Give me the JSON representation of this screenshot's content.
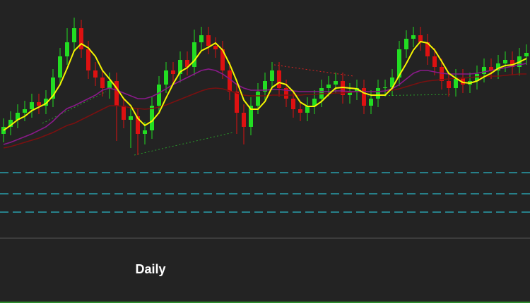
{
  "chart_data": {
    "type": "candlestick",
    "title": "Daily",
    "ylim": [
      0,
      340
    ],
    "up_color": "#22dd22",
    "down_color": "#dd1111",
    "open": [
      150,
      160,
      170,
      180,
      185,
      195,
      190,
      200,
      230,
      260,
      280,
      300,
      270,
      240,
      230,
      215,
      225,
      190,
      170,
      175,
      150,
      155,
      190,
      220,
      240,
      235,
      255,
      245,
      280,
      290,
      275,
      270,
      240,
      210,
      180,
      160,
      190,
      210,
      225,
      240,
      215,
      200,
      185,
      180,
      190,
      200,
      215,
      220,
      225,
      205,
      210,
      215,
      190,
      200,
      215,
      216,
      230,
      270,
      285,
      290,
      280,
      260,
      245,
      225,
      215,
      230,
      220,
      225,
      235,
      245,
      240,
      250,
      255,
      245,
      260
    ],
    "high": [
      172,
      182,
      192,
      197,
      207,
      207,
      212,
      242,
      272,
      300,
      315,
      312,
      282,
      252,
      242,
      237,
      237,
      202,
      187,
      187,
      167,
      202,
      232,
      252,
      252,
      267,
      267,
      298,
      302,
      302,
      287,
      282,
      252,
      222,
      192,
      202,
      222,
      237,
      252,
      252,
      227,
      212,
      197,
      202,
      212,
      227,
      232,
      237,
      237,
      222,
      227,
      227,
      212,
      227,
      227,
      242,
      282,
      297,
      302,
      302,
      292,
      272,
      257,
      237,
      242,
      242,
      237,
      247,
      257,
      257,
      262,
      267,
      267,
      272,
      277
    ],
    "low": [
      138,
      148,
      158,
      168,
      173,
      178,
      178,
      188,
      218,
      248,
      268,
      258,
      228,
      218,
      203,
      200,
      140,
      158,
      130,
      120,
      135,
      143,
      178,
      208,
      223,
      223,
      233,
      233,
      268,
      263,
      258,
      228,
      198,
      150,
      135,
      148,
      178,
      198,
      213,
      203,
      188,
      173,
      168,
      168,
      178,
      188,
      203,
      208,
      193,
      193,
      198,
      178,
      178,
      188,
      203,
      204,
      218,
      258,
      273,
      268,
      248,
      233,
      213,
      203,
      203,
      208,
      208,
      213,
      223,
      228,
      228,
      238,
      233,
      233,
      248
    ],
    "close": [
      160,
      170,
      180,
      185,
      195,
      190,
      200,
      230,
      260,
      280,
      300,
      270,
      240,
      230,
      215,
      225,
      190,
      170,
      175,
      150,
      155,
      190,
      220,
      240,
      235,
      255,
      245,
      280,
      290,
      275,
      270,
      240,
      210,
      180,
      160,
      190,
      210,
      225,
      240,
      215,
      200,
      185,
      180,
      190,
      200,
      215,
      220,
      225,
      205,
      210,
      215,
      190,
      200,
      215,
      216,
      230,
      270,
      285,
      290,
      280,
      260,
      245,
      225,
      215,
      230,
      220,
      225,
      235,
      245,
      240,
      250,
      255,
      245,
      260,
      265
    ],
    "series": [
      {
        "color": "#7a1010",
        "values": [
          130,
          132,
          135,
          138,
          141,
          144,
          148,
          152,
          157,
          162,
          165,
          170,
          175,
          180,
          185,
          190,
          190,
          189,
          187,
          186,
          185,
          186,
          188,
          191,
          195,
          199,
          203,
          207,
          211,
          214,
          215,
          214,
          211,
          208,
          205,
          204,
          204,
          204,
          205,
          205,
          205,
          205,
          205,
          206,
          206,
          207,
          207,
          208,
          208,
          209,
          210,
          210,
          210,
          210,
          211,
          212,
          214,
          217,
          220,
          223,
          225,
          226,
          227,
          228,
          229,
          229,
          230,
          231,
          231,
          232,
          232,
          233,
          234,
          235,
          235
        ]
      },
      {
        "color": "#8a1a8a",
        "values": [
          135,
          138,
          142,
          146,
          150,
          155,
          160,
          168,
          178,
          186,
          190,
          195,
          200,
          205,
          212,
          215,
          212,
          208,
          204,
          200,
          200,
          203,
          208,
          214,
          220,
          225,
          230,
          235,
          240,
          242,
          240,
          235,
          228,
          220,
          215,
          212,
          212,
          212,
          213,
          213,
          212,
          211,
          210,
          210,
          210,
          210,
          210,
          211,
          211,
          210,
          210,
          210,
          210,
          210,
          211,
          214,
          220,
          228,
          236,
          240,
          240,
          238,
          236,
          235,
          235,
          235,
          235,
          236,
          238,
          240,
          242,
          244,
          246,
          248,
          250
        ]
      },
      {
        "color": "#f5f500",
        "values": [
          155,
          162,
          170,
          175,
          183,
          188,
          193,
          204,
          220,
          243,
          268,
          278,
          272,
          260,
          240,
          228,
          215,
          200,
          190,
          172,
          162,
          168,
          180,
          201,
          221,
          238,
          244,
          254,
          268,
          273,
          279,
          269,
          249,
          225,
          198,
          185,
          185,
          196,
          216,
          223,
          220,
          210,
          195,
          189,
          189,
          196,
          206,
          215,
          216,
          215,
          214,
          208,
          205,
          205,
          205,
          215,
          233,
          250,
          269,
          281,
          279,
          269,
          253,
          236,
          229,
          223,
          222,
          225,
          231,
          236,
          243,
          247,
          248,
          252,
          257
        ]
      }
    ],
    "hlines": {
      "color": "#2ab8c8",
      "values": [
        95,
        65,
        39
      ]
    }
  }
}
